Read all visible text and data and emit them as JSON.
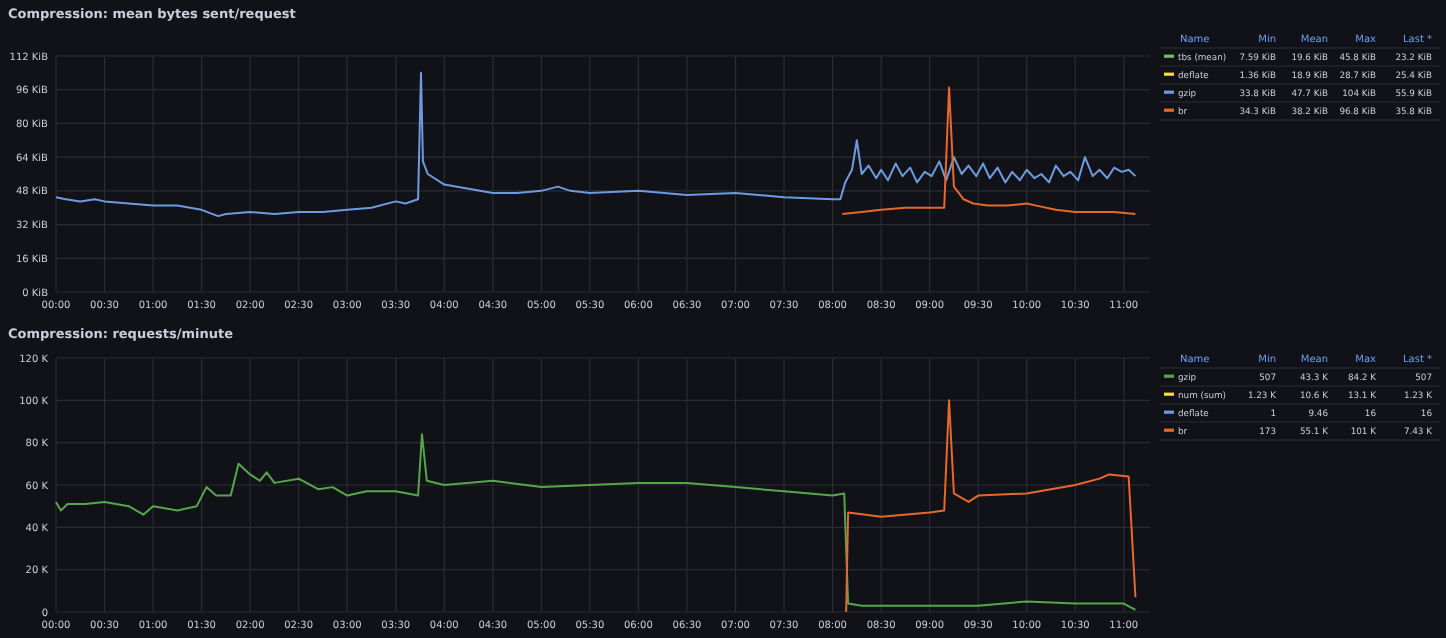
{
  "chart_data": [
    {
      "type": "line",
      "title": "Compression: mean bytes sent/request",
      "legend_title": "Name",
      "legend": "right",
      "grid": true,
      "marker": "none",
      "line_style": "solid",
      "xlim": [
        0,
        11.27
      ],
      "ylim": [
        0,
        112
      ],
      "xticks": [
        {
          "value": 0,
          "label": "00:00"
        },
        {
          "value": 0.5,
          "label": "00:30"
        },
        {
          "value": 1,
          "label": "01:00"
        },
        {
          "value": 1.5,
          "label": "01:30"
        },
        {
          "value": 2,
          "label": "02:00"
        },
        {
          "value": 2.5,
          "label": "02:30"
        },
        {
          "value": 3,
          "label": "03:00"
        },
        {
          "value": 3.5,
          "label": "03:30"
        },
        {
          "value": 4,
          "label": "04:00"
        },
        {
          "value": 4.5,
          "label": "04:30"
        },
        {
          "value": 5,
          "label": "05:00"
        },
        {
          "value": 5.5,
          "label": "05:30"
        },
        {
          "value": 6,
          "label": "06:00"
        },
        {
          "value": 6.5,
          "label": "06:30"
        },
        {
          "value": 7,
          "label": "07:00"
        },
        {
          "value": 7.5,
          "label": "07:30"
        },
        {
          "value": 8,
          "label": "08:00"
        },
        {
          "value": 8.5,
          "label": "08:30"
        },
        {
          "value": 9,
          "label": "09:00"
        },
        {
          "value": 9.5,
          "label": "09:30"
        },
        {
          "value": 10,
          "label": "10:00"
        },
        {
          "value": 10.5,
          "label": "10:30"
        },
        {
          "value": 11,
          "label": "11:00"
        }
      ],
      "yticks": [
        {
          "value": 0,
          "label": "0 KiB"
        },
        {
          "value": 16,
          "label": "16 KiB"
        },
        {
          "value": 32,
          "label": "32 KiB"
        },
        {
          "value": 48,
          "label": "48 KiB"
        },
        {
          "value": 64,
          "label": "64 KiB"
        },
        {
          "value": 80,
          "label": "80 KiB"
        },
        {
          "value": 96,
          "label": "96 KiB"
        },
        {
          "value": 112,
          "label": "112 KiB"
        }
      ],
      "annotations": [
        "Min",
        "Mean",
        "Max",
        "Last *",
        "7.59 KiB",
        "19.6 KiB",
        "45.8 KiB",
        "23.2 KiB",
        "1.36 KiB",
        "18.9 KiB",
        "28.7 KiB",
        "25.4 KiB",
        "33.8 KiB",
        "47.7 KiB",
        "104 KiB",
        "55.9 KiB",
        "34.3 KiB",
        "38.2 KiB",
        "96.8 KiB",
        "35.8 KiB"
      ],
      "series": [
        {
          "name": "tbs (mean)",
          "color": "#73bf69"
        },
        {
          "name": "deflate",
          "color": "#fade2a"
        },
        {
          "name": "gzip",
          "color": "#6e9be0",
          "x": [
            0,
            0.1,
            0.25,
            0.4,
            0.5,
            0.75,
            1,
            1.25,
            1.5,
            1.67,
            1.75,
            2,
            2.25,
            2.5,
            2.75,
            3,
            3.25,
            3.5,
            3.6,
            3.73,
            3.76,
            3.78,
            3.83,
            4,
            4.25,
            4.5,
            4.75,
            5,
            5.17,
            5.3,
            5.5,
            6,
            6.5,
            7,
            7.5,
            8,
            8.08,
            8.13,
            8.2,
            8.25,
            8.3,
            8.37,
            8.45,
            8.5,
            8.57,
            8.65,
            8.72,
            8.8,
            8.87,
            8.95,
            9.02,
            9.1,
            9.17,
            9.25,
            9.33,
            9.4,
            9.48,
            9.55,
            9.62,
            9.7,
            9.78,
            9.85,
            9.93,
            10,
            10.08,
            10.15,
            10.23,
            10.3,
            10.38,
            10.45,
            10.53,
            10.6,
            10.68,
            10.75,
            10.83,
            10.9,
            10.98,
            11.05,
            11.12
          ],
          "values": [
            45,
            44,
            43,
            44,
            43,
            42,
            41,
            41,
            39,
            36,
            37,
            38,
            37,
            38,
            38,
            39,
            40,
            43,
            42,
            44,
            104,
            62,
            56,
            51,
            49,
            47,
            47,
            48,
            50,
            48,
            47,
            48,
            46,
            47,
            45,
            44,
            44,
            52,
            58,
            72,
            56,
            60,
            54,
            58,
            53,
            61,
            55,
            59,
            52,
            57,
            55,
            62,
            53,
            64,
            56,
            60,
            55,
            61,
            54,
            59,
            52,
            57,
            53,
            58,
            54,
            56,
            52,
            60,
            55,
            57,
            53,
            64,
            55,
            58,
            54,
            59,
            57,
            58,
            55
          ]
        },
        {
          "name": "br",
          "color": "#e8672a",
          "x": [
            8.1,
            8.3,
            8.5,
            8.75,
            9,
            9.15,
            9.2,
            9.25,
            9.35,
            9.45,
            9.6,
            9.8,
            10,
            10.1,
            10.3,
            10.5,
            10.7,
            10.9,
            11.12
          ],
          "values": [
            37,
            38,
            39,
            40,
            40,
            40,
            97,
            50,
            44,
            42,
            41,
            41,
            42,
            41,
            39,
            38,
            38,
            38,
            37
          ]
        }
      ]
    },
    {
      "type": "line",
      "title": "Compression: requests/minute",
      "legend_title": "Name",
      "legend": "right",
      "grid": true,
      "marker": "none",
      "line_style": "solid",
      "xlim": [
        0,
        11.27
      ],
      "ylim": [
        0,
        120
      ],
      "xticks": [
        {
          "value": 0,
          "label": "00:00"
        },
        {
          "value": 0.5,
          "label": "00:30"
        },
        {
          "value": 1,
          "label": "01:00"
        },
        {
          "value": 1.5,
          "label": "01:30"
        },
        {
          "value": 2,
          "label": "02:00"
        },
        {
          "value": 2.5,
          "label": "02:30"
        },
        {
          "value": 3,
          "label": "03:00"
        },
        {
          "value": 3.5,
          "label": "03:30"
        },
        {
          "value": 4,
          "label": "04:00"
        },
        {
          "value": 4.5,
          "label": "04:30"
        },
        {
          "value": 5,
          "label": "05:00"
        },
        {
          "value": 5.5,
          "label": "05:30"
        },
        {
          "value": 6,
          "label": "06:00"
        },
        {
          "value": 6.5,
          "label": "06:30"
        },
        {
          "value": 7,
          "label": "07:00"
        },
        {
          "value": 7.5,
          "label": "07:30"
        },
        {
          "value": 8,
          "label": "08:00"
        },
        {
          "value": 8.5,
          "label": "08:30"
        },
        {
          "value": 9,
          "label": "09:00"
        },
        {
          "value": 9.5,
          "label": "09:30"
        },
        {
          "value": 10,
          "label": "10:00"
        },
        {
          "value": 10.5,
          "label": "10:30"
        },
        {
          "value": 11,
          "label": "11:00"
        }
      ],
      "yticks": [
        0,
        {
          "value": 20,
          "label": "20 K"
        },
        {
          "value": 40,
          "label": "40 K"
        },
        {
          "value": 60,
          "label": "60 K"
        },
        {
          "value": 80,
          "label": "80 K"
        },
        {
          "value": 100,
          "label": "100 K"
        },
        {
          "value": 120,
          "label": "120 K"
        }
      ],
      "annotations": [
        "Min",
        "Mean",
        "Max",
        "Last *",
        "507",
        "43.3 K",
        "84.2 K",
        "507",
        "1.23 K",
        "10.6 K",
        "13.1 K",
        "1.23 K",
        "1",
        "9.46",
        "16",
        "16",
        "173",
        "55.1 K",
        "101 K",
        "7.43 K"
      ],
      "series": [
        {
          "name": "gzip",
          "color": "#56a64b",
          "x": [
            0,
            0.05,
            0.12,
            0.3,
            0.5,
            0.75,
            0.9,
            1,
            1.25,
            1.45,
            1.55,
            1.65,
            1.8,
            1.88,
            2,
            2.1,
            2.17,
            2.25,
            2.5,
            2.7,
            2.85,
            3,
            3.2,
            3.5,
            3.73,
            3.77,
            3.82,
            4,
            4.5,
            5,
            5.5,
            6,
            6.5,
            7,
            7.5,
            8,
            8.12,
            8.16,
            8.3,
            9,
            9.5,
            10,
            10.5,
            11,
            11.12
          ],
          "values": [
            52,
            48,
            51,
            51,
            52,
            50,
            46,
            50,
            48,
            50,
            59,
            55,
            55,
            70,
            65,
            62,
            66,
            61,
            63,
            58,
            59,
            55,
            57,
            57,
            55,
            84,
            62,
            60,
            62,
            59,
            60,
            61,
            61,
            59,
            57,
            55,
            56,
            4,
            3,
            3,
            3,
            5,
            4,
            4,
            1
          ]
        },
        {
          "name": "num (sum)",
          "color": "#fade2a"
        },
        {
          "name": "deflate",
          "color": "#6e9be0"
        },
        {
          "name": "br",
          "color": "#e8672a",
          "x": [
            8.14,
            8.16,
            8.5,
            9,
            9.15,
            9.2,
            9.25,
            9.4,
            9.5,
            10,
            10.5,
            10.75,
            10.85,
            11.05,
            11.12
          ],
          "values": [
            0,
            47,
            45,
            47,
            48,
            100,
            56,
            52,
            55,
            56,
            60,
            63,
            65,
            64,
            7
          ]
        }
      ]
    }
  ]
}
